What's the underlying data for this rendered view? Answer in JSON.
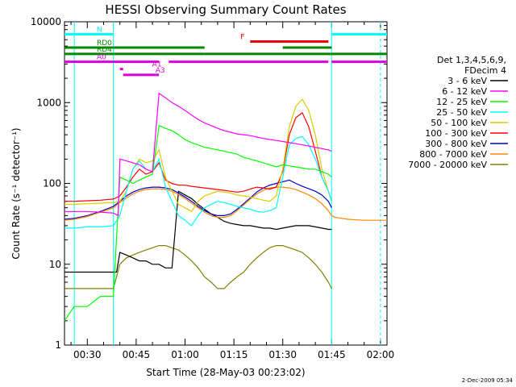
{
  "chart_data": {
    "type": "line",
    "title": "HESSI Observing Summary Count Rates",
    "xlabel": "Start Time (28-May-03 00:23:02)",
    "ylabel": "Count Rate (s⁻¹ detector⁻¹)",
    "x_unit": "minutes after 00:00 UT",
    "xlim": [
      23,
      122
    ],
    "ylim": [
      1,
      10000
    ],
    "yscale": "log",
    "x_ticks": [
      {
        "t": 30,
        "label": "00:30"
      },
      {
        "t": 45,
        "label": "00:45"
      },
      {
        "t": 60,
        "label": "01:00"
      },
      {
        "t": 75,
        "label": "01:15"
      },
      {
        "t": 90,
        "label": "01:30"
      },
      {
        "t": 105,
        "label": "01:45"
      },
      {
        "t": 120,
        "label": "02:00"
      }
    ],
    "y_ticks": [
      {
        "v": 1,
        "label": "1"
      },
      {
        "v": 10,
        "label": "10"
      },
      {
        "v": 100,
        "label": "100"
      },
      {
        "v": 1000,
        "label": "1000"
      },
      {
        "v": 10000,
        "label": "10000"
      }
    ],
    "legend_header": [
      "Det 1,3,4,5,6,9,",
      "FDecim 4"
    ],
    "legend_placement": "right",
    "footer_date": "2-Dec-2009 05:34",
    "series": [
      {
        "name": "3 - 6 keV",
        "color": "#000000",
        "x": [
          23,
          26,
          30,
          35,
          38,
          39,
          40,
          42,
          44,
          46,
          48,
          50,
          52,
          54,
          56,
          58,
          60,
          62,
          64,
          66,
          68,
          70,
          72,
          74,
          76,
          78,
          80,
          82,
          84,
          86,
          88,
          90,
          92,
          94,
          96,
          98,
          100,
          102,
          104,
          105
        ],
        "y": [
          8,
          8,
          8,
          8,
          8,
          8,
          14,
          13,
          12,
          11,
          11,
          10,
          10,
          9,
          9,
          80,
          72,
          65,
          55,
          48,
          42,
          38,
          34,
          32,
          31,
          30,
          30,
          29,
          28,
          28,
          27,
          28,
          29,
          30,
          30,
          30,
          29,
          28,
          27,
          27
        ]
      },
      {
        "name": "6 - 12 keV",
        "color": "#ff00ff",
        "x": [
          23,
          26,
          30,
          34,
          38,
          39.5,
          40,
          42,
          44,
          46,
          47,
          48,
          50,
          52,
          54,
          56,
          58,
          60,
          62,
          64,
          66,
          68,
          70,
          72,
          74,
          76,
          78,
          80,
          82,
          84,
          86,
          88,
          90,
          92,
          94,
          96,
          98,
          100,
          102,
          104,
          105
        ],
        "y": [
          45,
          45,
          45,
          44,
          43,
          40,
          200,
          190,
          180,
          170,
          160,
          150,
          140,
          1300,
          1150,
          1000,
          900,
          800,
          700,
          620,
          560,
          520,
          480,
          450,
          430,
          410,
          400,
          390,
          375,
          360,
          350,
          340,
          330,
          320,
          310,
          300,
          290,
          280,
          270,
          260,
          250
        ]
      },
      {
        "name": "12 - 25 keV",
        "color": "#00ff00",
        "x": [
          23,
          26,
          30,
          34,
          38,
          40,
          42,
          44,
          46,
          48,
          50,
          52,
          54,
          56,
          58,
          60,
          62,
          64,
          66,
          68,
          70,
          72,
          74,
          76,
          78,
          80,
          82,
          84,
          86,
          88,
          90,
          92,
          94,
          96,
          98,
          100,
          102,
          104,
          105
        ],
        "y": [
          2,
          3,
          3,
          4,
          4,
          120,
          110,
          100,
          110,
          120,
          130,
          520,
          480,
          450,
          400,
          350,
          320,
          300,
          280,
          270,
          260,
          250,
          240,
          230,
          210,
          200,
          190,
          180,
          170,
          160,
          170,
          165,
          160,
          155,
          150,
          150,
          140,
          130,
          120
        ]
      },
      {
        "name": "25 - 50 keV",
        "color": "#00ffff",
        "x": [
          23,
          26,
          30,
          34,
          38,
          40,
          42,
          44,
          46,
          48,
          50,
          52,
          54,
          56,
          58,
          60,
          62,
          64,
          66,
          68,
          70,
          72,
          74,
          76,
          78,
          80,
          82,
          84,
          86,
          88,
          90,
          92,
          94,
          96,
          98,
          100,
          102,
          104,
          105
        ],
        "y": [
          28,
          28,
          29,
          29,
          30,
          40,
          80,
          150,
          190,
          150,
          140,
          200,
          90,
          60,
          40,
          35,
          30,
          40,
          50,
          55,
          60,
          58,
          55,
          52,
          50,
          48,
          45,
          44,
          46,
          50,
          120,
          300,
          360,
          380,
          300,
          200,
          120,
          80,
          60
        ]
      },
      {
        "name": "50 - 100 keV",
        "color": "#ddcc00",
        "x": [
          23,
          26,
          30,
          34,
          38,
          40,
          42,
          44,
          46,
          48,
          50,
          52,
          54,
          56,
          58,
          60,
          62,
          64,
          66,
          68,
          70,
          72,
          74,
          76,
          78,
          80,
          82,
          84,
          86,
          88,
          90,
          92,
          94,
          96,
          98,
          100,
          102,
          104,
          105
        ],
        "y": [
          55,
          55,
          56,
          57,
          58,
          60,
          80,
          150,
          200,
          180,
          190,
          260,
          120,
          80,
          55,
          50,
          45,
          60,
          70,
          75,
          80,
          78,
          76,
          72,
          70,
          68,
          65,
          62,
          60,
          70,
          150,
          500,
          900,
          1100,
          800,
          400,
          150,
          80,
          60
        ]
      },
      {
        "name": "100 - 300 keV",
        "color": "#ff0000",
        "x": [
          23,
          26,
          30,
          34,
          38,
          40,
          42,
          44,
          46,
          48,
          50,
          52,
          54,
          56,
          58,
          60,
          62,
          64,
          66,
          68,
          70,
          72,
          74,
          76,
          78,
          80,
          82,
          84,
          86,
          88,
          90,
          92,
          94,
          96,
          98,
          100,
          102,
          104,
          105
        ],
        "y": [
          60,
          60,
          61,
          62,
          64,
          70,
          90,
          120,
          150,
          130,
          140,
          180,
          110,
          100,
          95,
          95,
          92,
          90,
          88,
          86,
          84,
          82,
          80,
          78,
          80,
          85,
          90,
          88,
          85,
          90,
          140,
          400,
          650,
          750,
          500,
          250,
          120,
          80,
          60
        ]
      },
      {
        "name": "300 - 800 keV",
        "color": "#0000cc",
        "x": [
          23,
          26,
          30,
          34,
          38,
          40,
          42,
          44,
          46,
          48,
          50,
          52,
          54,
          56,
          58,
          60,
          62,
          64,
          66,
          68,
          70,
          72,
          74,
          76,
          78,
          80,
          82,
          84,
          86,
          88,
          90,
          92,
          94,
          96,
          98,
          100,
          102,
          104,
          105
        ],
        "y": [
          36,
          37,
          40,
          45,
          52,
          60,
          70,
          78,
          84,
          88,
          90,
          90,
          88,
          84,
          76,
          68,
          60,
          52,
          46,
          42,
          40,
          40,
          42,
          48,
          56,
          66,
          78,
          88,
          95,
          100,
          105,
          110,
          100,
          92,
          86,
          80,
          72,
          60,
          50
        ]
      },
      {
        "name": "800 - 7000 keV",
        "color": "#ff8800",
        "x": [
          23,
          26,
          30,
          34,
          38,
          40,
          42,
          44,
          46,
          48,
          50,
          52,
          54,
          56,
          58,
          60,
          62,
          64,
          66,
          68,
          70,
          72,
          74,
          76,
          78,
          80,
          82,
          84,
          86,
          88,
          90,
          92,
          94,
          96,
          98,
          100,
          102,
          104,
          105,
          106,
          110,
          115,
          120,
          122
        ],
        "y": [
          35,
          36,
          39,
          44,
          50,
          58,
          66,
          74,
          80,
          84,
          86,
          86,
          84,
          80,
          73,
          65,
          57,
          50,
          44,
          40,
          38,
          38,
          40,
          46,
          54,
          64,
          74,
          82,
          88,
          90,
          90,
          88,
          84,
          78,
          72,
          65,
          56,
          46,
          40,
          38,
          36,
          35,
          35,
          35
        ]
      },
      {
        "name": "7000 - 20000 keV",
        "color": "#808000",
        "x": [
          23,
          26,
          30,
          34,
          38,
          40,
          42,
          44,
          46,
          48,
          50,
          52,
          54,
          56,
          58,
          60,
          62,
          64,
          66,
          68,
          70,
          72,
          74,
          76,
          78,
          80,
          82,
          84,
          86,
          88,
          90,
          92,
          94,
          96,
          98,
          100,
          102,
          104,
          105
        ],
        "y": [
          5,
          5,
          5,
          5,
          5,
          10,
          12,
          13,
          14,
          15,
          16,
          17,
          17,
          16,
          15,
          13,
          11,
          9,
          7,
          6,
          5,
          5,
          6,
          7,
          8,
          10,
          12,
          14,
          16,
          17,
          17,
          16,
          15,
          14,
          12,
          10,
          8,
          6,
          5
        ]
      }
    ],
    "state_bars": [
      {
        "label": "N",
        "color": "#00ffff",
        "level": 7000,
        "segments": [
          [
            23,
            38
          ],
          [
            105,
            122
          ]
        ]
      },
      {
        "label": "F",
        "color": "#ee0000",
        "level": 5700,
        "segments": [
          [
            80,
            104
          ]
        ]
      },
      {
        "label": "RD0",
        "color": "#008800",
        "level": 4800,
        "segments": [
          [
            23,
            66
          ],
          [
            90,
            105
          ]
        ]
      },
      {
        "label": "RD4",
        "color": "#008800",
        "level": 4000,
        "segments": [
          [
            23,
            38
          ],
          [
            38,
            66
          ],
          [
            66,
            122
          ]
        ]
      },
      {
        "label": "A0",
        "color": "#dd00dd",
        "level": 3200,
        "segments": [
          [
            23,
            52
          ],
          [
            55,
            104
          ],
          [
            105,
            122
          ]
        ]
      },
      {
        "label": "A1",
        "color": "#dd00dd",
        "level": 2600,
        "segments": [
          [
            40,
            41
          ]
        ]
      },
      {
        "label": "A3",
        "color": "#dd00dd",
        "level": 2200,
        "segments": [
          [
            41,
            52
          ]
        ]
      }
    ],
    "vertical_markers": [
      {
        "t": 26,
        "color": "#00ffff",
        "style": "solid"
      },
      {
        "t": 38,
        "color": "#00ffff",
        "style": "solid"
      },
      {
        "t": 105,
        "color": "#00ffff",
        "style": "solid"
      },
      {
        "t": 120,
        "color": "#00ffff",
        "style": "dashed"
      }
    ]
  }
}
